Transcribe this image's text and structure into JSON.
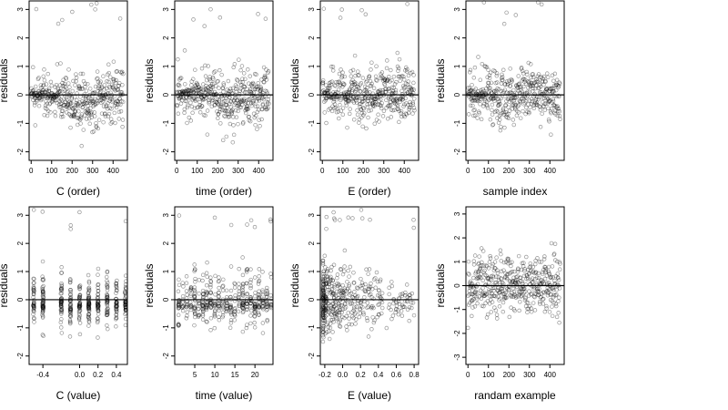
{
  "chart_data": [
    {
      "type": "scatter",
      "title": "",
      "xlabel": "C (order)",
      "ylabel": "residuals",
      "xlim": [
        -10,
        470
      ],
      "ylim": [
        -2.3,
        3.3
      ],
      "xticks": [
        0,
        100,
        200,
        300,
        400
      ],
      "yticks": [
        -2,
        -1,
        0,
        1,
        2,
        3
      ],
      "reference_line_y": 0,
      "n_points": 450,
      "pattern": "order",
      "x": [
        0,
        450
      ]
    },
    {
      "type": "scatter",
      "title": "",
      "xlabel": "time (order)",
      "ylabel": "residuals",
      "xlim": [
        -10,
        470
      ],
      "ylim": [
        -2.3,
        3.3
      ],
      "xticks": [
        0,
        100,
        200,
        300,
        400
      ],
      "yticks": [
        -2,
        -1,
        0,
        1,
        2,
        3
      ],
      "reference_line_y": 0,
      "n_points": 450,
      "pattern": "order",
      "x": [
        0,
        450
      ]
    },
    {
      "type": "scatter",
      "title": "",
      "xlabel": "E (order)",
      "ylabel": "residuals",
      "xlim": [
        -10,
        470
      ],
      "ylim": [
        -2.3,
        3.3
      ],
      "xticks": [
        0,
        100,
        200,
        300,
        400
      ],
      "yticks": [
        -2,
        -1,
        0,
        1,
        2,
        3
      ],
      "reference_line_y": 0,
      "n_points": 450,
      "pattern": "order",
      "x": [
        0,
        450
      ]
    },
    {
      "type": "scatter",
      "title": "",
      "xlabel": "sample index",
      "ylabel": "residuals",
      "xlim": [
        -10,
        470
      ],
      "ylim": [
        -2.3,
        3.3
      ],
      "xticks": [
        0,
        100,
        200,
        300,
        400
      ],
      "yticks": [
        -2,
        -1,
        0,
        1,
        2,
        3
      ],
      "reference_line_y": 0,
      "n_points": 450,
      "pattern": "order",
      "x": [
        0,
        450
      ]
    },
    {
      "type": "scatter",
      "title": "",
      "xlabel": "C (value)",
      "ylabel": "residuals",
      "xlim": [
        -0.55,
        0.52
      ],
      "ylim": [
        -2.3,
        3.3
      ],
      "xticks": [
        -0.4,
        0,
        0.2,
        0.4
      ],
      "xticklabels": [
        "-0.4",
        "0.0",
        "0.2",
        "0.4"
      ],
      "yticks": [
        -2,
        -1,
        0,
        1,
        2,
        3
      ],
      "reference_line_y": 0,
      "n_points": 450,
      "pattern": "discrete",
      "x": [
        -0.5,
        -0.4,
        -0.2,
        -0.1,
        0.0,
        0.1,
        0.2,
        0.3,
        0.4,
        0.5
      ]
    },
    {
      "type": "scatter",
      "title": "",
      "xlabel": "time (value)",
      "ylabel": "residuals",
      "xlim": [
        0,
        24.5
      ],
      "ylim": [
        -2.3,
        3.3
      ],
      "xticks": [
        5,
        10,
        15,
        20
      ],
      "xticklabels": [
        "5",
        "10",
        "15",
        "20"
      ],
      "yticks": [
        -2,
        -1,
        0,
        1,
        2,
        3
      ],
      "reference_line_y": 0,
      "n_points": 450,
      "pattern": "discrete",
      "x": [
        1,
        2,
        3,
        4,
        5,
        6,
        7,
        8,
        9,
        10,
        11,
        12,
        13,
        14,
        15,
        16,
        17,
        18,
        19,
        20,
        21,
        22,
        23,
        24
      ]
    },
    {
      "type": "scatter",
      "title": "",
      "xlabel": "E (value)",
      "ylabel": "residuals",
      "xlim": [
        -0.25,
        0.85
      ],
      "ylim": [
        -2.3,
        3.3
      ],
      "xticks": [
        -0.2,
        0,
        0.2,
        0.4,
        0.6,
        0.8
      ],
      "xticklabels": [
        "-0.2",
        "0.0",
        "0.2",
        "0.4",
        "0.6",
        "0.8"
      ],
      "yticks": [
        -2,
        -1,
        0,
        1,
        2,
        3
      ],
      "reference_line_y": 0,
      "n_points": 450,
      "pattern": "skewed",
      "x": [
        -0.22,
        0.8
      ]
    },
    {
      "type": "scatter",
      "title": "",
      "xlabel": "randam example",
      "ylabel": "residuals",
      "xlim": [
        -10,
        470
      ],
      "ylim": [
        -3.3,
        3.3
      ],
      "xticks": [
        0,
        100,
        200,
        300,
        400
      ],
      "yticks": [
        -3,
        -2,
        -1,
        0,
        1,
        2,
        3
      ],
      "reference_line_y": 0,
      "n_points": 450,
      "pattern": "random",
      "x": [
        0,
        450
      ]
    }
  ]
}
